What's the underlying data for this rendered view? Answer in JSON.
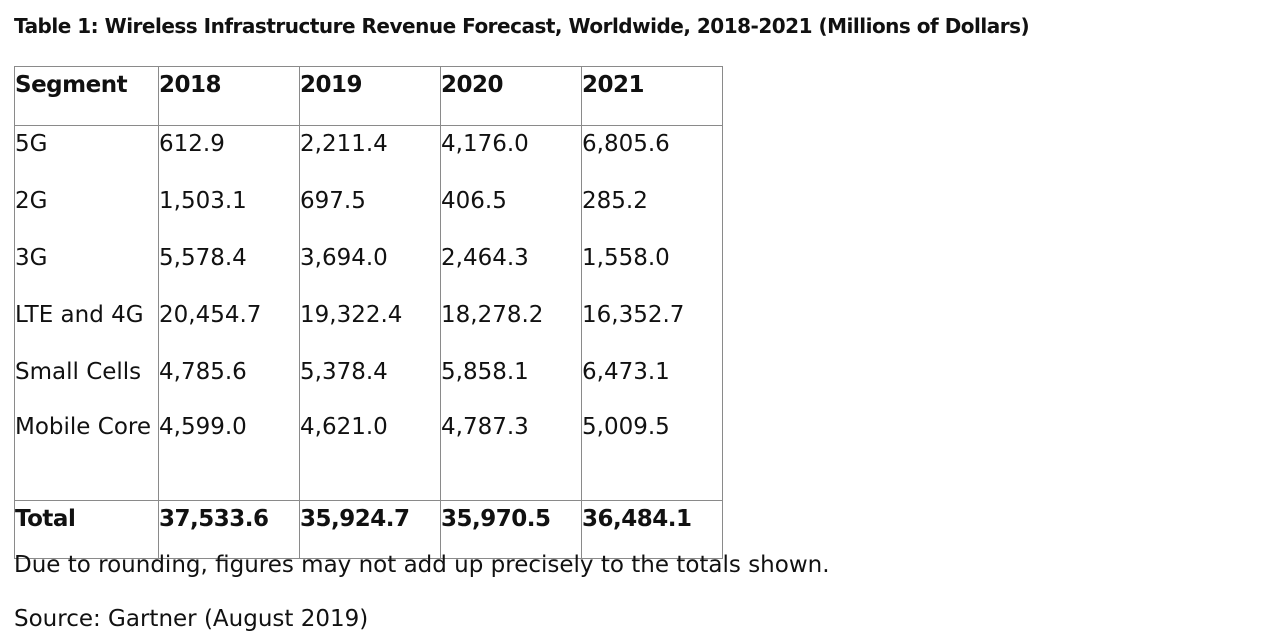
{
  "table": {
    "title": "Table 1: Wireless Infrastructure Revenue Forecast, Worldwide, 2018-2021 (Millions of Dollars)",
    "headers": [
      "Segment",
      "2018",
      "2019",
      "2020",
      "2021"
    ],
    "rows": [
      [
        "5G",
        "612.9",
        "2,211.4",
        "4,176.0",
        "6,805.6"
      ],
      [
        "2G",
        "1,503.1",
        "697.5",
        "406.5",
        "285.2"
      ],
      [
        "3G",
        "5,578.4",
        "3,694.0",
        "2,464.3",
        "1,558.0"
      ],
      [
        "LTE and 4G",
        "20,454.7",
        "19,322.4",
        "18,278.2",
        "16,352.7"
      ],
      [
        "Small Cells",
        "4,785.6",
        "5,378.4",
        "5,858.1",
        "6,473.1"
      ],
      [
        "Mobile Core",
        "4,599.0",
        "4,621.0",
        "4,787.3",
        "5,009.5"
      ]
    ],
    "total": [
      "Total",
      "37,533.6",
      "35,924.7",
      "35,970.5",
      "36,484.1"
    ]
  },
  "notes": {
    "rounding": "Due to rounding, figures may not add up precisely to the totals shown.",
    "source": "Source: Gartner (August 2019)"
  }
}
